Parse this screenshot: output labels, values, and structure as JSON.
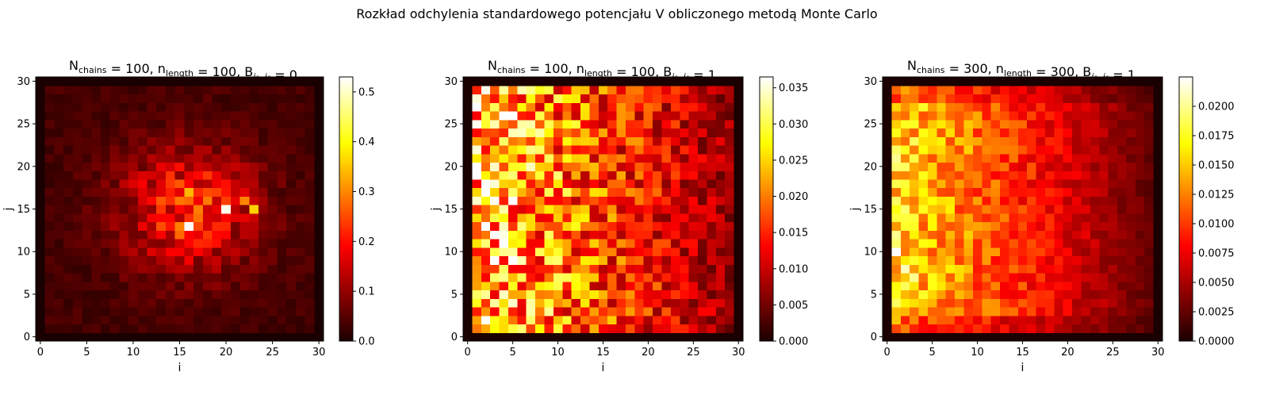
{
  "suptitle": "Rozkład odchylenia standardowego potencjału V obliczonego metodą Monte Carlo",
  "colors": {
    "colormap": "hot",
    "axis": "#000000",
    "background": "#ffffff"
  },
  "chart_data": [
    {
      "type": "heatmap",
      "title": {
        "parts": [
          {
            "text": "N"
          },
          {
            "text": "chains",
            "sub": true
          },
          {
            "text": " = 100, n"
          },
          {
            "text": "length",
            "sub": true
          },
          {
            "text": " = 100, B"
          },
          {
            "text": "j₀, i₀",
            "sub": true,
            "italic": true
          },
          {
            "text": " = 0"
          }
        ]
      },
      "xlabel": "i",
      "ylabel": "j",
      "grid_size": [
        31,
        31
      ],
      "xlim": [
        0,
        30
      ],
      "ylim": [
        0,
        30
      ],
      "xticks": [
        0,
        5,
        10,
        15,
        20,
        25,
        30
      ],
      "yticks": [
        0,
        5,
        10,
        15,
        20,
        25,
        30
      ],
      "colorbar": {
        "min": 0.0,
        "max": 0.53,
        "ticks": [
          0.0,
          0.1,
          0.2,
          0.3,
          0.4,
          0.5
        ],
        "tick_labels": [
          "0.0",
          "0.1",
          "0.2",
          "0.3",
          "0.4",
          "0.5"
        ]
      },
      "pattern": "centered",
      "seed": 11,
      "hotspots": [
        {
          "i": 16,
          "j": 13,
          "value": 0.53
        },
        {
          "i": 20,
          "j": 15,
          "value": 0.52
        },
        {
          "i": 23,
          "j": 15,
          "value": 0.36
        },
        {
          "i": 16,
          "j": 17,
          "value": 0.34
        },
        {
          "i": 22,
          "j": 16,
          "value": 0.3
        },
        {
          "i": 13,
          "j": 16,
          "value": 0.26
        },
        {
          "i": 18,
          "j": 17,
          "value": 0.25
        }
      ]
    },
    {
      "type": "heatmap",
      "title": {
        "parts": [
          {
            "text": "N"
          },
          {
            "text": "chains",
            "sub": true
          },
          {
            "text": " = 100, n"
          },
          {
            "text": "length",
            "sub": true
          },
          {
            "text": " = 100, B"
          },
          {
            "text": "j₀, i₀",
            "sub": true,
            "italic": true
          },
          {
            "text": " = 1"
          }
        ]
      },
      "xlabel": "i",
      "ylabel": "j",
      "grid_size": [
        31,
        31
      ],
      "xlim": [
        0,
        30
      ],
      "ylim": [
        0,
        30
      ],
      "xticks": [
        0,
        5,
        10,
        15,
        20,
        25,
        30
      ],
      "yticks": [
        0,
        5,
        10,
        15,
        20,
        25,
        30
      ],
      "colorbar": {
        "min": 0.0,
        "max": 0.0365,
        "ticks": [
          0.0,
          0.005,
          0.01,
          0.015,
          0.02,
          0.025,
          0.03,
          0.035
        ],
        "tick_labels": [
          "0.000",
          "0.005",
          "0.010",
          "0.015",
          "0.020",
          "0.025",
          "0.030",
          "0.035"
        ]
      },
      "pattern": "left_edge_noisy",
      "seed": 23,
      "hotspots": [
        {
          "i": 1,
          "j": 25,
          "value": 0.036
        },
        {
          "i": 1,
          "j": 22,
          "value": 0.035
        },
        {
          "i": 5,
          "j": 9,
          "value": 0.0365
        },
        {
          "i": 3,
          "j": 4,
          "value": 0.033
        },
        {
          "i": 8,
          "j": 22,
          "value": 0.031
        },
        {
          "i": 10,
          "j": 6,
          "value": 0.03
        }
      ]
    },
    {
      "type": "heatmap",
      "title": {
        "parts": [
          {
            "text": "N"
          },
          {
            "text": "chains",
            "sub": true
          },
          {
            "text": " = 300, n"
          },
          {
            "text": "length",
            "sub": true
          },
          {
            "text": " = 300, B"
          },
          {
            "text": "j₀, i₀",
            "sub": true,
            "italic": true
          },
          {
            "text": " = 1"
          }
        ]
      },
      "xlabel": "i",
      "ylabel": "j",
      "grid_size": [
        31,
        31
      ],
      "xlim": [
        0,
        30
      ],
      "ylim": [
        0,
        30
      ],
      "xticks": [
        0,
        5,
        10,
        15,
        20,
        25,
        30
      ],
      "yticks": [
        0,
        5,
        10,
        15,
        20,
        25,
        30
      ],
      "colorbar": {
        "min": 0.0,
        "max": 0.0225,
        "ticks": [
          0.0,
          0.0025,
          0.005,
          0.0075,
          0.01,
          0.0125,
          0.015,
          0.0175,
          0.02
        ],
        "tick_labels": [
          "0.0000",
          "0.0025",
          "0.0050",
          "0.0075",
          "0.0100",
          "0.0125",
          "0.0150",
          "0.0175",
          "0.0200"
        ]
      },
      "pattern": "left_edge_smooth",
      "seed": 37,
      "hotspots": [
        {
          "i": 1,
          "j": 10,
          "value": 0.0225
        },
        {
          "i": 2,
          "j": 8,
          "value": 0.021
        },
        {
          "i": 3,
          "j": 7,
          "value": 0.02
        },
        {
          "i": 1,
          "j": 21,
          "value": 0.02
        },
        {
          "i": 2,
          "j": 20,
          "value": 0.019
        }
      ]
    }
  ]
}
